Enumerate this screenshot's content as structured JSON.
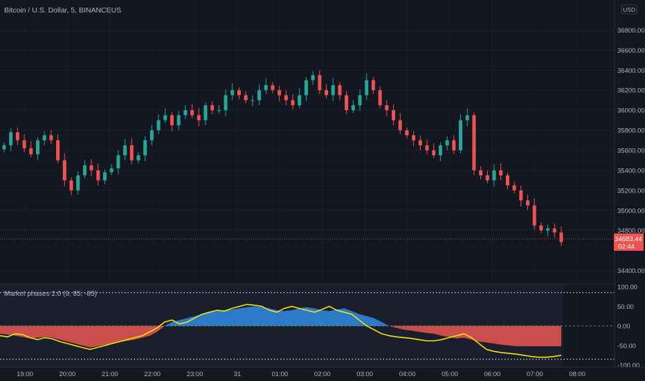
{
  "header": {
    "symbol_title": "Bitcoin / U.S. Dollar, 5, BINANCEUS",
    "currency": "USD"
  },
  "indicator": {
    "label": "Market phases 2.0 (9, 85, -85)",
    "y_ticks": [
      "100.00",
      "50.00",
      "0.00",
      "-50.00",
      "-100.00"
    ]
  },
  "price_axis": {
    "ticks": [
      "36800.00",
      "36600.00",
      "36400.00",
      "36200.00",
      "36000.00",
      "35800.00",
      "35600.00",
      "35400.00",
      "35200.00",
      "35000.00",
      "34800.00",
      "34400.00"
    ],
    "last_price": "34683.44",
    "countdown": "02:44"
  },
  "time_axis": {
    "ticks": [
      "19:00",
      "20:00",
      "21:00",
      "22:00",
      "23:00",
      "31",
      "01:00",
      "02:00",
      "03:00",
      "04:00",
      "05:00",
      "06:00",
      "07:00",
      "08:00"
    ]
  },
  "colors": {
    "background": "#131722",
    "up": "#26a69a",
    "down": "#ef5350",
    "signal_line": "#f5e50a",
    "positive_fill": "#2d7fd1",
    "negative_fill": "#d9534f",
    "grid": "#1f2330"
  },
  "chart_data": [
    {
      "type": "candlestick",
      "title": "Bitcoin / U.S. Dollar, 5, BINANCEUS",
      "interval_minutes": 5,
      "x_start": "18:45",
      "ylim": [
        34300,
        37100
      ],
      "ohlc_close_path": [
        35650,
        35780,
        35700,
        35620,
        35560,
        35700,
        35750,
        35700,
        35500,
        35300,
        35200,
        35350,
        35450,
        35400,
        35300,
        35380,
        35420,
        35550,
        35650,
        35500,
        35550,
        35700,
        35800,
        35900,
        35950,
        35850,
        35950,
        36000,
        35950,
        35900,
        36050,
        36000,
        36000,
        36150,
        36200,
        36150,
        36100,
        36100,
        36200,
        36250,
        36200,
        36150,
        36100,
        36050,
        36150,
        36300,
        36350,
        36200,
        36150,
        36250,
        36150,
        36000,
        36050,
        36150,
        36300,
        36200,
        36050,
        36000,
        35900,
        35800,
        35750,
        35700,
        35650,
        35600,
        35550,
        35650,
        35700,
        35600,
        35900,
        35950,
        35400,
        35350,
        35300,
        35400,
        35350,
        35250,
        35200,
        35100,
        35050,
        34850,
        34800,
        34820,
        34780,
        34683
      ],
      "last_close": 34683.44,
      "last_candle_direction": "down"
    },
    {
      "type": "area",
      "title": "Market phases 2.0 (9, 85, -85)",
      "ylim": [
        -100,
        100
      ],
      "reference_lines": [
        85,
        0,
        -85
      ],
      "series": [
        {
          "name": "phase",
          "values": [
            -20,
            -22,
            -25,
            -28,
            -32,
            -30,
            -28,
            -30,
            -35,
            -40,
            -45,
            -50,
            -55,
            -52,
            -48,
            -45,
            -40,
            -38,
            -35,
            -30,
            -25,
            -15,
            0,
            10,
            15,
            20,
            25,
            30,
            35,
            38,
            40,
            42,
            45,
            48,
            50,
            48,
            45,
            40,
            38,
            40,
            45,
            48,
            45,
            40,
            38,
            42,
            45,
            38,
            30,
            25,
            20,
            10,
            0,
            -5,
            -10,
            -12,
            -15,
            -18,
            -20,
            -25,
            -28,
            -32,
            -30,
            -35,
            -40,
            -42,
            -45,
            -48,
            -50,
            -52,
            -52,
            -52,
            -52,
            -52,
            -52,
            -52
          ]
        },
        {
          "name": "signal",
          "values": [
            -25,
            -28,
            -20,
            -22,
            -30,
            -35,
            -30,
            -33,
            -40,
            -45,
            -50,
            -55,
            -60,
            -55,
            -50,
            -45,
            -40,
            -35,
            -30,
            -25,
            -15,
            -5,
            10,
            15,
            5,
            10,
            20,
            30,
            35,
            40,
            38,
            45,
            50,
            55,
            53,
            50,
            40,
            35,
            45,
            50,
            45,
            40,
            35,
            42,
            50,
            40,
            35,
            30,
            15,
            0,
            -10,
            -20,
            -25,
            -28,
            -30,
            -32,
            -35,
            -38,
            -38,
            -35,
            -30,
            -25,
            -20,
            -30,
            -45,
            -60,
            -65,
            -68,
            -70,
            -72,
            -75,
            -78,
            -80,
            -80,
            -78,
            -75
          ]
        }
      ]
    }
  ]
}
